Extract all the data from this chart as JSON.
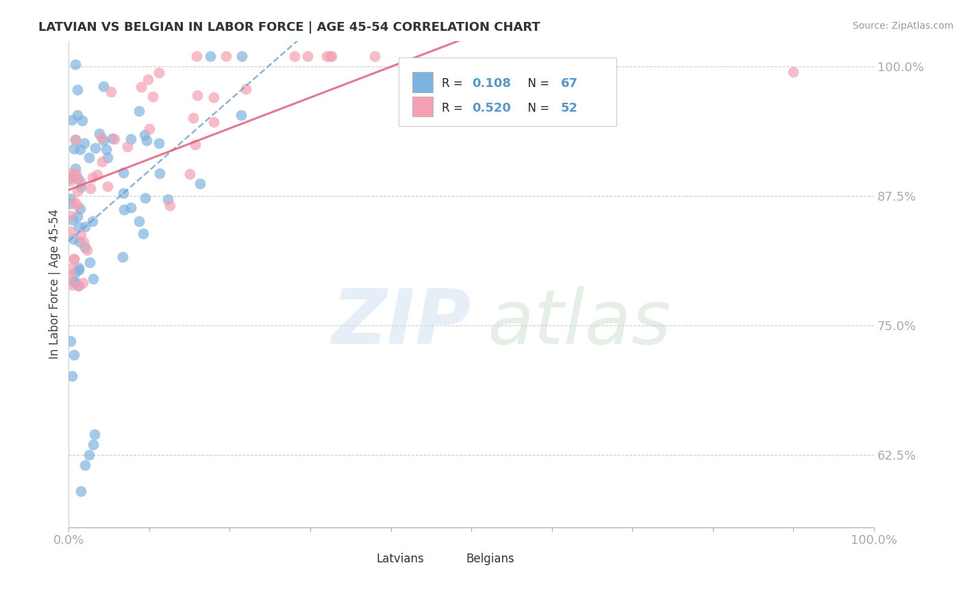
{
  "title": "LATVIAN VS BELGIAN IN LABOR FORCE | AGE 45-54 CORRELATION CHART",
  "source": "Source: ZipAtlas.com",
  "ylabel": "In Labor Force | Age 45-54",
  "xlim": [
    0.0,
    1.0
  ],
  "ylim": [
    0.555,
    1.025
  ],
  "yticks": [
    0.625,
    0.75,
    0.875,
    1.0
  ],
  "ytick_labels": [
    "62.5%",
    "75.0%",
    "87.5%",
    "100.0%"
  ],
  "xtick_labels_left": "0.0%",
  "xtick_labels_right": "100.0%",
  "latvian_R": 0.108,
  "latvian_N": 67,
  "belgian_R": 0.52,
  "belgian_N": 52,
  "latvian_color": "#7EB3E0",
  "belgian_color": "#F4A0B0",
  "latvian_line_color": "#6699CC",
  "belgian_line_color": "#E06080",
  "background_color": "#FFFFFF",
  "grid_color": "#CCCCCC",
  "tick_color": "#5599CC",
  "legend_label_latvians": "Latvians",
  "legend_label_belgians": "Belgians",
  "title_fontsize": 13,
  "axis_fontsize": 13,
  "marker_size": 130
}
